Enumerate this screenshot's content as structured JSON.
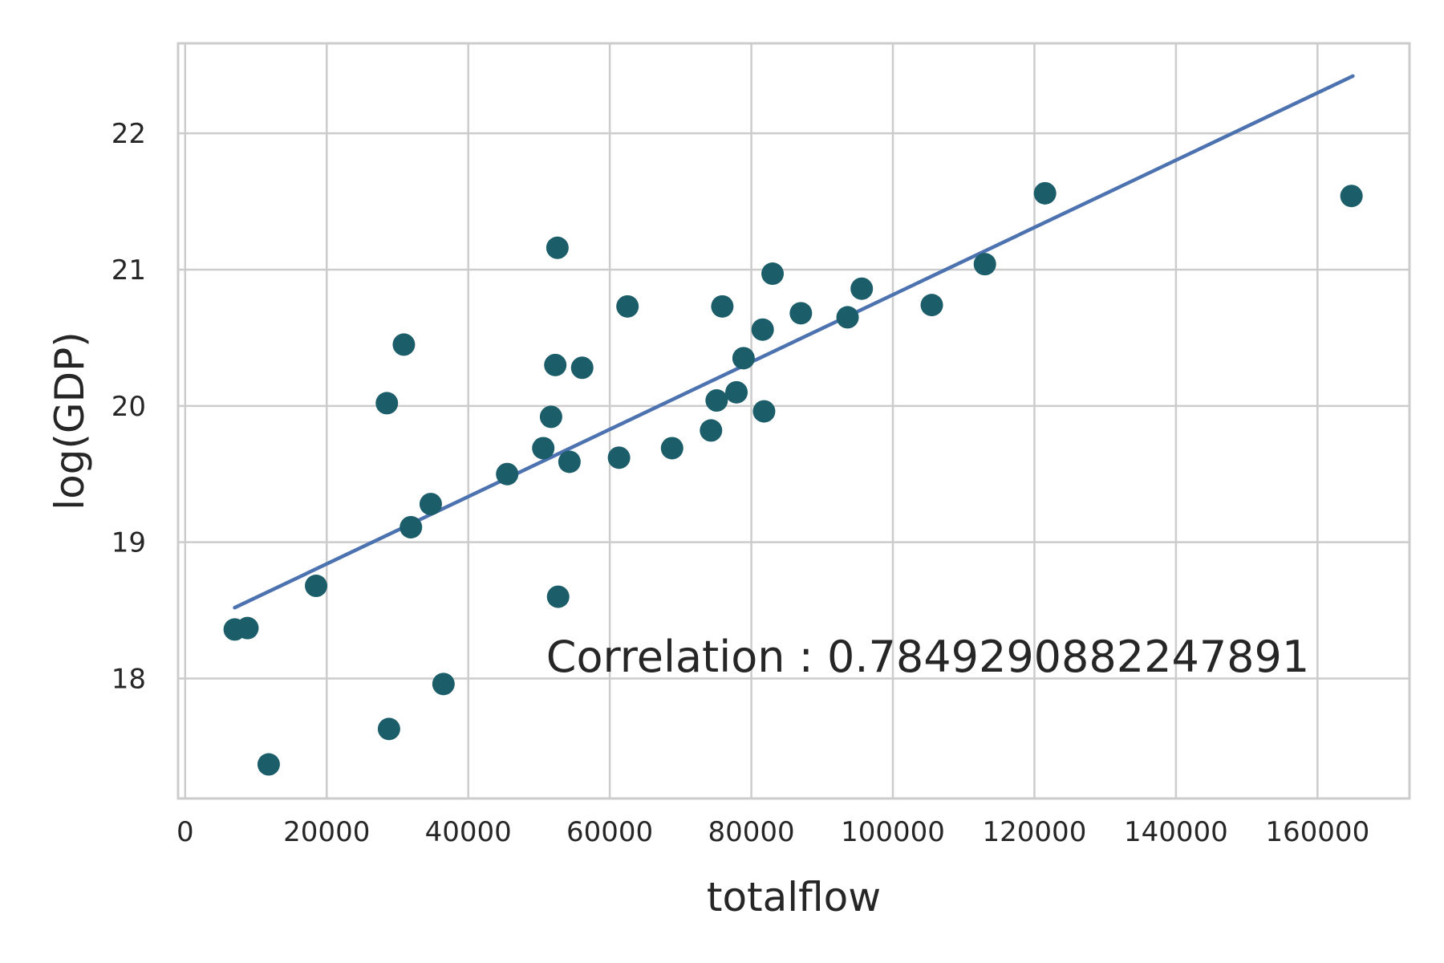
{
  "chart_data": {
    "type": "scatter",
    "xlabel": "totalflow",
    "ylabel": "log(GDP)",
    "xlim": [
      -1000,
      173000
    ],
    "ylim": [
      17.12,
      22.66
    ],
    "x_ticks": [
      0,
      20000,
      40000,
      60000,
      80000,
      100000,
      120000,
      140000,
      160000
    ],
    "y_ticks": [
      18,
      19,
      20,
      21,
      22
    ],
    "grid": true,
    "colors": {
      "points": "#1b5e6a",
      "fit_line": "#4c72b0",
      "grid": "#cccccc"
    },
    "points": [
      {
        "x": 7000,
        "y": 18.36
      },
      {
        "x": 8800,
        "y": 18.37
      },
      {
        "x": 11800,
        "y": 17.37
      },
      {
        "x": 18500,
        "y": 18.68
      },
      {
        "x": 28500,
        "y": 20.02
      },
      {
        "x": 28800,
        "y": 17.63
      },
      {
        "x": 30900,
        "y": 20.45
      },
      {
        "x": 31900,
        "y": 19.11
      },
      {
        "x": 34700,
        "y": 19.28
      },
      {
        "x": 36500,
        "y": 17.96
      },
      {
        "x": 45500,
        "y": 19.5
      },
      {
        "x": 50600,
        "y": 19.69
      },
      {
        "x": 51700,
        "y": 19.92
      },
      {
        "x": 52300,
        "y": 20.3
      },
      {
        "x": 52600,
        "y": 21.16
      },
      {
        "x": 52700,
        "y": 18.6
      },
      {
        "x": 54300,
        "y": 19.59
      },
      {
        "x": 56100,
        "y": 20.28
      },
      {
        "x": 61300,
        "y": 19.62
      },
      {
        "x": 62500,
        "y": 20.73
      },
      {
        "x": 68800,
        "y": 19.69
      },
      {
        "x": 74300,
        "y": 19.82
      },
      {
        "x": 75100,
        "y": 20.04
      },
      {
        "x": 75900,
        "y": 20.73
      },
      {
        "x": 77900,
        "y": 20.1
      },
      {
        "x": 78900,
        "y": 20.35
      },
      {
        "x": 81600,
        "y": 20.56
      },
      {
        "x": 81800,
        "y": 19.96
      },
      {
        "x": 83000,
        "y": 20.97
      },
      {
        "x": 87000,
        "y": 20.68
      },
      {
        "x": 93600,
        "y": 20.65
      },
      {
        "x": 95600,
        "y": 20.86
      },
      {
        "x": 105500,
        "y": 20.74
      },
      {
        "x": 113000,
        "y": 21.04
      },
      {
        "x": 121500,
        "y": 21.56
      },
      {
        "x": 164800,
        "y": 21.54
      }
    ],
    "fit_line": {
      "x": [
        7000,
        165000
      ],
      "y": [
        18.52,
        22.42
      ]
    },
    "annotation": {
      "text": "Correlation : 0.7849290882247891",
      "x": 51000,
      "y": 18.05
    }
  }
}
